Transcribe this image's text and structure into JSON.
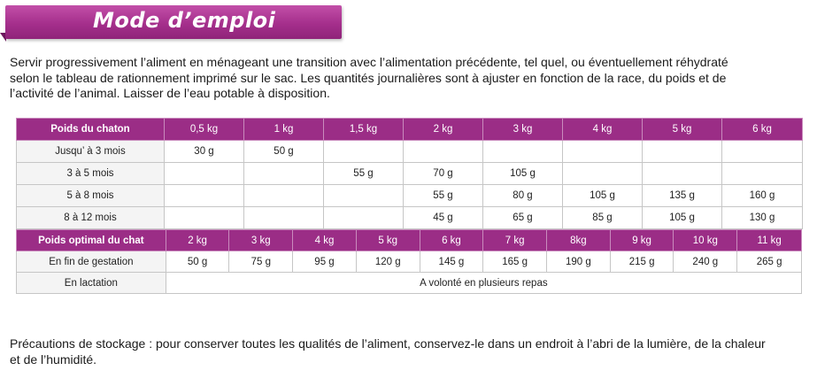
{
  "title": "Mode d’emploi",
  "intro_lines": [
    "Servir progressivement l’aliment en ménageant une transition avec l’alimentation précédente, tel quel, ou éventuellement réhydraté",
    "selon le tableau de rationnement imprimé sur le sac. Les quantités journalières sont à ajuster en fonction de la race, du poids et de",
    "l’activité de l’animal.  Laisser de l’eau potable à disposition."
  ],
  "kitten_table": {
    "header_label": "Poids du chaton",
    "columns": [
      "0,5 kg",
      "1 kg",
      "1,5 kg",
      "2 kg",
      "3 kg",
      "4 kg",
      "5 kg",
      "6 kg"
    ],
    "rows": [
      {
        "label": "Jusqu’ à 3 mois",
        "cells": [
          "30 g",
          "50 g",
          "",
          "",
          "",
          "",
          "",
          ""
        ]
      },
      {
        "label": "3 à 5 mois",
        "cells": [
          "",
          "",
          "55 g",
          "70 g",
          "105 g",
          "",
          "",
          ""
        ]
      },
      {
        "label": "5 à 8 mois",
        "cells": [
          "",
          "",
          "",
          "55 g",
          "80 g",
          "105 g",
          "135 g",
          "160 g"
        ]
      },
      {
        "label": "8 à 12 mois",
        "cells": [
          "",
          "",
          "",
          "45 g",
          "65 g",
          "85 g",
          "105 g",
          "130 g"
        ]
      }
    ]
  },
  "cat_table": {
    "header_label": "Poids optimal du chat",
    "columns": [
      "2 kg",
      "3 kg",
      "4 kg",
      "5 kg",
      "6 kg",
      "7 kg",
      "8kg",
      "9 kg",
      "10 kg",
      "11 kg"
    ],
    "gestation": {
      "label": "En fin de gestation",
      "cells": [
        "50 g",
        "75 g",
        "95 g",
        "120 g",
        "145 g",
        "165 g",
        "190 g",
        "215 g",
        "240 g",
        "265 g"
      ]
    },
    "lactation": {
      "label": "En lactation",
      "value": "A volonté en plusieurs repas"
    }
  },
  "storage_lines": [
    "Précautions de stockage : pour conserver toutes les qualités de l’aliment, conservez-le dans un endroit à l’abri de la lumière, de la chaleur",
    "et de l’humidité."
  ]
}
